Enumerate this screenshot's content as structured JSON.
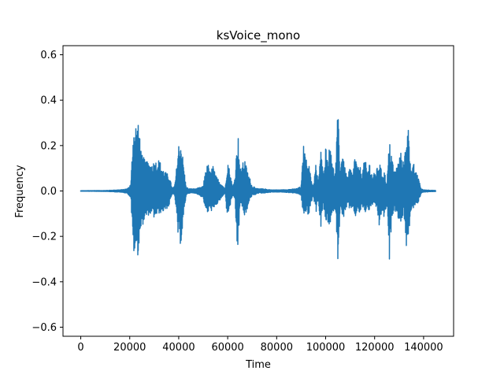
{
  "chart_data": {
    "type": "line",
    "title": "ksVoice_mono",
    "xlabel": "Time",
    "ylabel": "Frequency",
    "xlim": [
      -7250,
      152250
    ],
    "ylim": [
      -0.64,
      0.64
    ],
    "x_ticks": [
      0,
      20000,
      40000,
      60000,
      80000,
      100000,
      120000,
      140000
    ],
    "x_tick_labels": [
      "0",
      "20000",
      "40000",
      "60000",
      "80000",
      "100000",
      "120000",
      "140000"
    ],
    "y_ticks": [
      -0.6,
      -0.4,
      -0.2,
      0.0,
      0.2,
      0.4,
      0.6
    ],
    "y_tick_labels": [
      "−0.6",
      "−0.4",
      "−0.2",
      "0.0",
      "0.2",
      "0.4",
      "0.6"
    ],
    "grid": false,
    "line_color": "#1f77b4",
    "series": [
      {
        "samples": 145000,
        "x_range": [
          0,
          145000
        ],
        "envelope": {
          "x": [
            0,
            10000,
            14000,
            17000,
            19000,
            20500,
            21000,
            21500,
            22000,
            22500,
            23000,
            23500,
            24000,
            24500,
            25000,
            26000,
            27000,
            28000,
            30000,
            32000,
            34000,
            36000,
            37500,
            38500,
            40000,
            41000,
            42000,
            43000,
            44000,
            45000,
            47000,
            50000,
            51000,
            52000,
            53000,
            54000,
            55000,
            57000,
            59000,
            59500,
            60000,
            61000,
            62000,
            63000,
            64000,
            64500,
            65000,
            66000,
            67000,
            68000,
            69000,
            70000,
            71000,
            72000,
            74000,
            78000,
            82000,
            86000,
            88000,
            89000,
            90000,
            91000,
            92000,
            93000,
            94000,
            95000,
            96000,
            97000,
            98000,
            99000,
            100000,
            101000,
            102000,
            103000,
            104000,
            105000,
            106000,
            107000,
            108000,
            109000,
            110000,
            111000,
            112000,
            113000,
            114000,
            115000,
            116000,
            117000,
            118000,
            119000,
            120000,
            121000,
            122000,
            123000,
            124000,
            125000,
            126000,
            127000,
            128000,
            129000,
            130000,
            131000,
            132000,
            133000,
            134000,
            135000,
            136000,
            137000,
            138000,
            139000,
            140000,
            142000,
            145000
          ],
          "max": [
            0.001,
            0.002,
            0.004,
            0.006,
            0.01,
            0.03,
            0.17,
            0.29,
            0.27,
            0.3,
            0.28,
            0.32,
            0.24,
            0.21,
            0.17,
            0.14,
            0.13,
            0.12,
            0.13,
            0.14,
            0.09,
            0.07,
            0.01,
            0.03,
            0.21,
            0.22,
            0.12,
            0.02,
            0.01,
            0.01,
            0.01,
            0.02,
            0.1,
            0.12,
            0.08,
            0.12,
            0.07,
            0.04,
            0.01,
            0.08,
            0.14,
            0.08,
            0.02,
            0.06,
            0.24,
            0.24,
            0.09,
            0.12,
            0.14,
            0.09,
            0.06,
            0.02,
            0.02,
            0.01,
            0.01,
            0.005,
            0.005,
            0.008,
            0.01,
            0.015,
            0.02,
            0.2,
            0.14,
            0.13,
            0.06,
            0.02,
            0.12,
            0.04,
            0.19,
            0.08,
            0.2,
            0.14,
            0.24,
            0.11,
            0.08,
            0.36,
            0.09,
            0.2,
            0.09,
            0.06,
            0.11,
            0.07,
            0.17,
            0.1,
            0.11,
            0.08,
            0.15,
            0.09,
            0.13,
            0.07,
            0.08,
            0.1,
            0.13,
            0.08,
            0.09,
            0.03,
            0.22,
            0.17,
            0.08,
            0.11,
            0.14,
            0.18,
            0.12,
            0.27,
            0.28,
            0.08,
            0.12,
            0.08,
            0.06,
            0.01,
            0.005,
            0.004,
            0.002
          ],
          "min": [
            -0.001,
            -0.002,
            -0.004,
            -0.006,
            -0.01,
            -0.03,
            -0.18,
            -0.27,
            -0.28,
            -0.26,
            -0.27,
            -0.29,
            -0.2,
            -0.18,
            -0.16,
            -0.13,
            -0.12,
            -0.1,
            -0.12,
            -0.1,
            -0.09,
            -0.07,
            -0.01,
            -0.03,
            -0.24,
            -0.23,
            -0.13,
            -0.02,
            -0.01,
            -0.01,
            -0.01,
            -0.03,
            -0.09,
            -0.1,
            -0.08,
            -0.1,
            -0.07,
            -0.04,
            -0.01,
            -0.08,
            -0.11,
            -0.07,
            -0.02,
            -0.05,
            -0.29,
            -0.19,
            -0.07,
            -0.07,
            -0.13,
            -0.08,
            -0.04,
            -0.02,
            -0.02,
            -0.01,
            -0.01,
            -0.005,
            -0.005,
            -0.008,
            -0.01,
            -0.015,
            -0.02,
            -0.13,
            -0.09,
            -0.12,
            -0.06,
            -0.02,
            -0.1,
            -0.04,
            -0.17,
            -0.06,
            -0.14,
            -0.14,
            -0.17,
            -0.09,
            -0.08,
            -0.3,
            -0.08,
            -0.13,
            -0.09,
            -0.06,
            -0.1,
            -0.07,
            -0.12,
            -0.09,
            -0.1,
            -0.07,
            -0.1,
            -0.08,
            -0.09,
            -0.06,
            -0.07,
            -0.08,
            -0.17,
            -0.08,
            -0.13,
            -0.05,
            -0.33,
            -0.12,
            -0.08,
            -0.1,
            -0.13,
            -0.14,
            -0.1,
            -0.25,
            -0.19,
            -0.08,
            -0.08,
            -0.06,
            -0.05,
            -0.01,
            -0.005,
            -0.004,
            -0.002
          ]
        }
      }
    ]
  }
}
